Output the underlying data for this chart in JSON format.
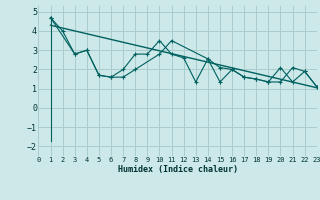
{
  "title": "",
  "xlabel": "Humidex (Indice chaleur)",
  "background_color": "#cce8e8",
  "grid_color": "#aacccc",
  "line_color": "#006060",
  "xlim": [
    0,
    23
  ],
  "ylim": [
    -2.5,
    5.3
  ],
  "xticks": [
    0,
    1,
    2,
    3,
    4,
    5,
    6,
    7,
    8,
    9,
    10,
    11,
    12,
    13,
    14,
    15,
    16,
    17,
    18,
    19,
    20,
    21,
    22,
    23
  ],
  "yticks": [
    -2,
    -1,
    0,
    1,
    2,
    3,
    4,
    5
  ],
  "line1_x": [
    1,
    2,
    3,
    4,
    5,
    6,
    7,
    8,
    9,
    10,
    11,
    12,
    13,
    14,
    15,
    16,
    17,
    18,
    19,
    20,
    21,
    22,
    23
  ],
  "line1_y": [
    4.7,
    4.0,
    2.8,
    3.0,
    1.7,
    1.6,
    2.0,
    2.8,
    2.8,
    3.5,
    2.8,
    2.6,
    1.35,
    2.55,
    2.1,
    2.0,
    1.6,
    1.5,
    1.35,
    2.1,
    1.35,
    1.9,
    1.1
  ],
  "line2_x": [
    1,
    3,
    4,
    5,
    6,
    7,
    8,
    10,
    11,
    14,
    15,
    16,
    17,
    18,
    19,
    20,
    21,
    22,
    23
  ],
  "line2_y": [
    4.7,
    2.8,
    3.0,
    1.7,
    1.6,
    1.6,
    2.0,
    2.8,
    3.5,
    2.55,
    1.35,
    2.0,
    1.6,
    1.5,
    1.35,
    1.35,
    2.1,
    1.9,
    1.1
  ],
  "trend_x": [
    1,
    23
  ],
  "trend_y": [
    4.3,
    1.05
  ],
  "vert_x": 1,
  "vert_y0": -1.7,
  "vert_y1": 4.7
}
